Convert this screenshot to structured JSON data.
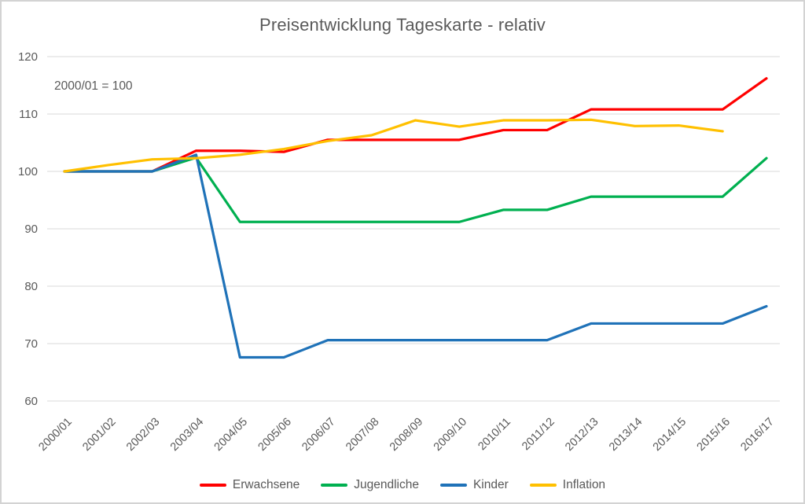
{
  "chart_data": {
    "type": "line",
    "title": "Preisentwicklung Tageskarte - relativ",
    "annotation": "2000/01 = 100",
    "categories": [
      "2000/01",
      "2001/02",
      "2002/03",
      "2003/04",
      "2004/05",
      "2005/06",
      "2006/07",
      "2007/08",
      "2008/09",
      "2009/10",
      "2010/11",
      "2011/12",
      "2012/13",
      "2013/14",
      "2014/15",
      "2015/16",
      "2016/17"
    ],
    "series": [
      {
        "name": "Erwachsene",
        "color": "#FF0000",
        "values": [
          100,
          100,
          100,
          103.6,
          103.6,
          103.4,
          105.5,
          105.5,
          105.5,
          105.5,
          107.2,
          107.2,
          110.8,
          110.8,
          110.8,
          110.8,
          116.2
        ]
      },
      {
        "name": "Jugendliche",
        "color": "#00B050",
        "values": [
          100,
          100,
          100,
          102.4,
          91.2,
          91.2,
          91.2,
          91.2,
          91.2,
          91.2,
          93.3,
          93.3,
          95.6,
          95.6,
          95.6,
          95.6,
          102.3
        ]
      },
      {
        "name": "Kinder",
        "color": "#1F72B8",
        "values": [
          100,
          100,
          100,
          102.9,
          67.6,
          67.6,
          70.6,
          70.6,
          70.6,
          70.6,
          70.6,
          70.6,
          73.5,
          73.5,
          73.5,
          73.5,
          76.5
        ]
      },
      {
        "name": "Inflation",
        "color": "#FFC000",
        "values": [
          100,
          101.1,
          102.1,
          102.3,
          102.9,
          103.9,
          105.3,
          106.3,
          108.9,
          107.8,
          108.9,
          108.9,
          109.0,
          107.9,
          108.0,
          107.0,
          null
        ]
      }
    ],
    "y_axis": {
      "min": 60,
      "max": 120,
      "step": 10,
      "ticks": [
        120,
        110,
        100,
        90,
        80,
        70,
        60
      ]
    },
    "x_axis": {
      "label_rotation_deg": 45
    },
    "legend_position": "bottom",
    "grid": true,
    "colors": {
      "text": "#595959",
      "gridline": "#D9D9D9",
      "frame": "#D3D3D3",
      "background": "#FFFFFF"
    }
  }
}
